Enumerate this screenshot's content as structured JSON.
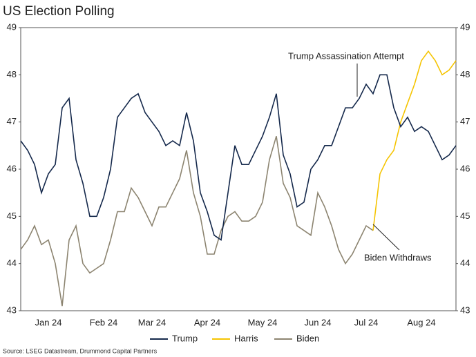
{
  "chart_data": {
    "type": "line",
    "title": "US Election Polling",
    "source": "Source: LSEG Datastream, Drummond Capital Partners",
    "annotations": [
      "Trump Assassination Attempt",
      "Biden Withdraws"
    ],
    "categories": [
      null,
      null,
      null,
      null,
      "Jan 24",
      null,
      null,
      null,
      null,
      null,
      null,
      null,
      "Feb 24",
      null,
      null,
      null,
      null,
      null,
      null,
      "Mar 24",
      null,
      null,
      null,
      null,
      null,
      null,
      null,
      "Apr 24",
      null,
      null,
      null,
      null,
      null,
      null,
      null,
      "May 24",
      null,
      null,
      null,
      null,
      null,
      null,
      null,
      "Jun 24",
      null,
      null,
      null,
      null,
      null,
      null,
      "Jul 24",
      null,
      null,
      null,
      null,
      null,
      null,
      null,
      "Aug 24",
      null,
      null,
      null,
      null,
      null
    ],
    "series": [
      {
        "name": "Trump",
        "color": "#14284b",
        "values": [
          46.6,
          46.4,
          46.1,
          45.5,
          45.9,
          46.1,
          47.3,
          47.5,
          46.2,
          45.7,
          45.0,
          45.0,
          45.4,
          46.0,
          47.1,
          47.3,
          47.5,
          47.6,
          47.2,
          47.0,
          46.8,
          46.5,
          46.6,
          46.5,
          47.2,
          46.6,
          45.5,
          45.1,
          44.6,
          44.5,
          45.5,
          46.5,
          46.1,
          46.1,
          46.4,
          46.7,
          47.1,
          47.6,
          46.3,
          45.9,
          45.2,
          45.3,
          46.0,
          46.2,
          46.5,
          46.5,
          46.9,
          47.3,
          47.3,
          47.5,
          47.8,
          47.6,
          48.0,
          48.0,
          47.3,
          46.9,
          47.1,
          46.8,
          46.9,
          46.8,
          46.5,
          46.2,
          46.3,
          46.5
        ]
      },
      {
        "name": "Harris",
        "color": "#f5c400",
        "values": [
          null,
          null,
          null,
          null,
          null,
          null,
          null,
          null,
          null,
          null,
          null,
          null,
          null,
          null,
          null,
          null,
          null,
          null,
          null,
          null,
          null,
          null,
          null,
          null,
          null,
          null,
          null,
          null,
          null,
          null,
          null,
          null,
          null,
          null,
          null,
          null,
          null,
          null,
          null,
          null,
          null,
          null,
          null,
          null,
          null,
          null,
          null,
          null,
          null,
          null,
          null,
          44.7,
          45.9,
          46.2,
          46.4,
          47.0,
          47.4,
          47.8,
          48.3,
          48.5,
          48.3,
          48.0,
          48.1,
          48.3
        ]
      },
      {
        "name": "Biden",
        "color": "#8c8470",
        "values": [
          44.3,
          44.5,
          44.8,
          44.4,
          44.5,
          44.0,
          43.1,
          44.5,
          44.8,
          44.0,
          43.8,
          43.9,
          44.0,
          44.5,
          45.1,
          45.1,
          45.6,
          45.4,
          45.1,
          44.8,
          45.2,
          45.2,
          45.5,
          45.8,
          46.4,
          45.5,
          45.0,
          44.2,
          44.2,
          44.7,
          45.0,
          45.1,
          44.9,
          44.9,
          45.0,
          45.3,
          46.2,
          46.7,
          45.7,
          45.4,
          44.8,
          44.7,
          44.6,
          45.5,
          45.2,
          44.8,
          44.3,
          44.0,
          44.2,
          44.5,
          44.8,
          44.7,
          null,
          null,
          null,
          null,
          null,
          null,
          null,
          null,
          null,
          null,
          null,
          null
        ]
      }
    ],
    "ylim": [
      43,
      49
    ],
    "yticks": [
      43,
      44,
      45,
      46,
      47,
      48,
      49
    ],
    "y2lim": [
      43,
      49
    ],
    "y2ticks": [
      43,
      44,
      45,
      46,
      47,
      48,
      49
    ],
    "legend": "bottom"
  }
}
